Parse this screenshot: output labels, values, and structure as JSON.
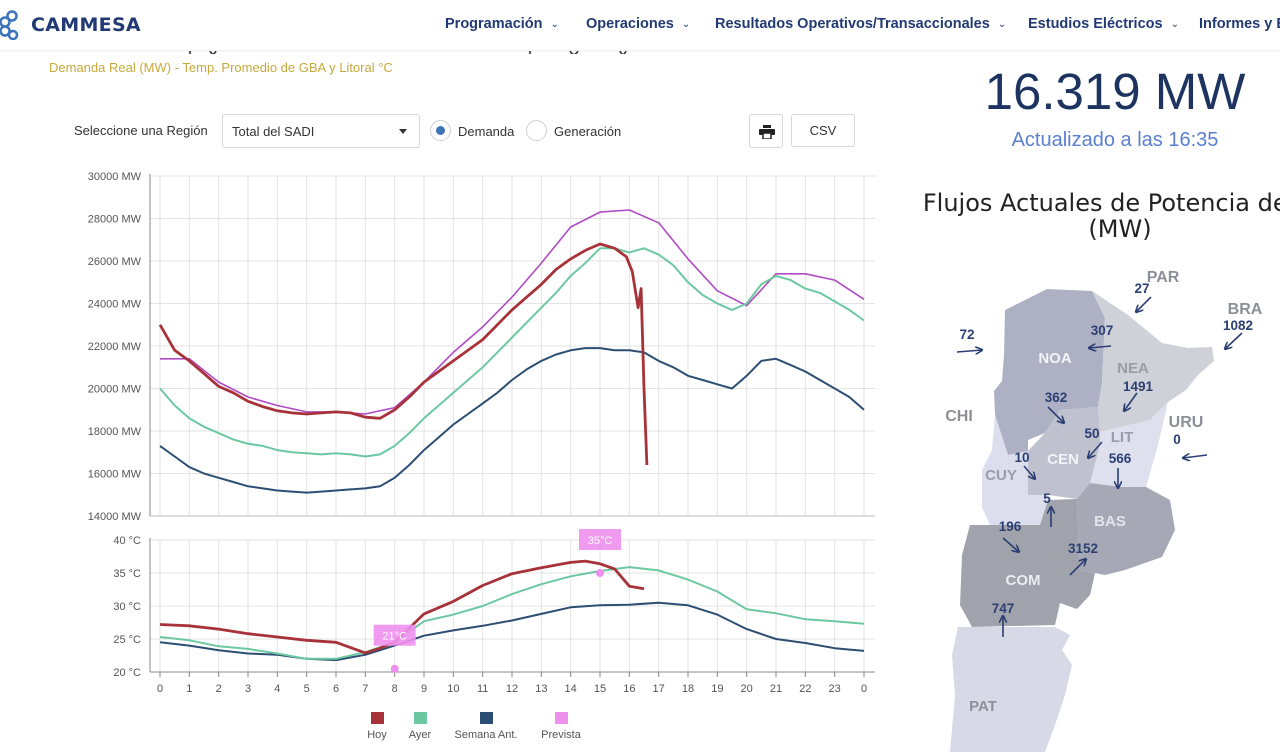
{
  "brand": {
    "name": "CAMMESA",
    "color": "#213a73"
  },
  "nav": [
    {
      "label": "Programación"
    },
    {
      "label": "Operaciones"
    },
    {
      "label": "Resultados Operativos/Transaccionales"
    },
    {
      "label": "Estudios Eléctricos"
    },
    {
      "label": "Informes y E"
    }
  ],
  "subtitle": "Demanda Real (MW) - Temp. Promedio de GBA y Litoral °C",
  "controls": {
    "region_label": "Seleccione una Región",
    "region_value": "Total del SADI",
    "radio_demanda": "Demanda",
    "radio_generacion": "Generación",
    "selected": "Demanda",
    "print_icon": "printer-icon",
    "csv_label": "CSV"
  },
  "chart_data": [
    {
      "type": "line",
      "x": [
        0,
        1,
        2,
        3,
        4,
        5,
        6,
        7,
        8,
        9,
        10,
        11,
        12,
        13,
        14,
        15,
        16,
        17,
        18,
        19,
        20,
        21,
        22,
        23,
        24
      ],
      "x_tick_labels": [
        "0",
        "1",
        "2",
        "3",
        "4",
        "5",
        "6",
        "7",
        "8",
        "9",
        "10",
        "11",
        "12",
        "13",
        "14",
        "15",
        "16",
        "17",
        "18",
        "19",
        "20",
        "21",
        "22",
        "23",
        "0"
      ],
      "y_tick_labels": [
        "14000 MW",
        "16000 MW",
        "18000 MW",
        "20000 MW",
        "22000 MW",
        "24000 MW",
        "26000 MW",
        "28000 MW",
        "30000 MW"
      ],
      "ylim": [
        14000,
        30000
      ],
      "grid": true,
      "series": [
        {
          "name": "Hoy",
          "color": "#a83239",
          "x": [
            0,
            0.5,
            1,
            1.5,
            2,
            2.5,
            3,
            3.5,
            4,
            4.5,
            5,
            5.5,
            6,
            6.5,
            7,
            7.5,
            8,
            8.5,
            9,
            9.5,
            10,
            10.5,
            11,
            11.5,
            12,
            12.5,
            13,
            13.5,
            14,
            14.5,
            15,
            15.5,
            15.9,
            16.1,
            16.3,
            16.4,
            16.5,
            16.6
          ],
          "values": [
            23000,
            21800,
            21300,
            20700,
            20100,
            19800,
            19400,
            19150,
            18950,
            18850,
            18800,
            18850,
            18900,
            18850,
            18650,
            18600,
            19000,
            19600,
            20300,
            20800,
            21300,
            21800,
            22300,
            23000,
            23700,
            24300,
            24900,
            25600,
            26100,
            26500,
            26800,
            26600,
            26200,
            25500,
            23800,
            24700,
            20000,
            16400
          ]
        },
        {
          "name": "Ayer",
          "color": "#6cc8a0",
          "x": [
            0,
            0.5,
            1,
            1.5,
            2,
            2.5,
            3,
            3.5,
            4,
            4.5,
            5,
            5.5,
            6,
            6.5,
            7,
            7.5,
            8,
            8.5,
            9,
            9.5,
            10,
            10.5,
            11,
            11.5,
            12,
            12.5,
            13,
            13.5,
            14,
            14.5,
            15,
            15.5,
            16,
            16.5,
            17,
            17.5,
            18,
            18.5,
            19,
            19.5,
            20,
            20.5,
            21,
            21.5,
            22,
            22.5,
            23,
            23.5,
            24
          ],
          "values": [
            20000,
            19200,
            18600,
            18200,
            17900,
            17600,
            17400,
            17300,
            17100,
            17000,
            16950,
            16900,
            16950,
            16900,
            16800,
            16900,
            17300,
            17900,
            18600,
            19200,
            19800,
            20400,
            21000,
            21700,
            22400,
            23100,
            23800,
            24500,
            25300,
            25900,
            26600,
            26600,
            26400,
            26600,
            26300,
            25800,
            25000,
            24400,
            24000,
            23700,
            24000,
            24900,
            25300,
            25100,
            24700,
            24500,
            24100,
            23700,
            23200
          ]
        },
        {
          "name": "Semana Ant.",
          "color": "#2d4e73",
          "x": [
            0,
            0.5,
            1,
            1.5,
            2,
            2.5,
            3,
            3.5,
            4,
            4.5,
            5,
            5.5,
            6,
            6.5,
            7,
            7.5,
            8,
            8.5,
            9,
            9.5,
            10,
            10.5,
            11,
            11.5,
            12,
            12.5,
            13,
            13.5,
            14,
            14.5,
            15,
            15.5,
            16,
            16.5,
            17,
            17.5,
            18,
            18.5,
            19,
            19.5,
            20,
            20.5,
            21,
            21.5,
            22,
            22.5,
            23,
            23.5,
            24
          ],
          "values": [
            17300,
            16800,
            16300,
            16000,
            15800,
            15600,
            15400,
            15300,
            15200,
            15150,
            15100,
            15150,
            15200,
            15250,
            15300,
            15400,
            15800,
            16400,
            17100,
            17700,
            18300,
            18800,
            19300,
            19800,
            20400,
            20900,
            21300,
            21600,
            21800,
            21900,
            21900,
            21800,
            21800,
            21700,
            21300,
            21000,
            20600,
            20400,
            20200,
            20000,
            20600,
            21300,
            21400,
            21100,
            20800,
            20400,
            20000,
            19600,
            19000
          ]
        },
        {
          "name": "",
          "color": "#b04bc4",
          "x": [
            0,
            1,
            2,
            3,
            4,
            5,
            6,
            7,
            8,
            9,
            10,
            11,
            12,
            13,
            14,
            15,
            16,
            17,
            18,
            19,
            20,
            21,
            22,
            23,
            24
          ],
          "values": [
            21400,
            21400,
            20300,
            19600,
            19200,
            18900,
            18900,
            18800,
            19100,
            20300,
            21700,
            22900,
            24300,
            25900,
            27600,
            28300,
            28400,
            27800,
            26100,
            24600,
            23900,
            25400,
            25400,
            25100,
            24200
          ]
        }
      ]
    },
    {
      "type": "line",
      "x": [
        0,
        1,
        2,
        3,
        4,
        5,
        6,
        7,
        8,
        9,
        10,
        11,
        12,
        13,
        14,
        15,
        16,
        17,
        18,
        19,
        20,
        21,
        22,
        23,
        24
      ],
      "y_tick_labels": [
        "20 °C",
        "25 °C",
        "30 °C",
        "35 °C",
        "40 °C"
      ],
      "ylim": [
        20,
        40
      ],
      "grid": true,
      "legend": [
        "Hoy",
        "Ayer",
        "Semana Ant.",
        "Prevista"
      ],
      "legend_colors": [
        "#a83239",
        "#6cc8a0",
        "#2d4e73",
        "#ee90ee"
      ],
      "annotations": [
        {
          "label": "21°C",
          "x": 8,
          "y": 20.5
        },
        {
          "label": "35°C",
          "x": 15,
          "y": 35
        }
      ],
      "series": [
        {
          "name": "Hoy",
          "color": "#a83239",
          "x": [
            0,
            1,
            2,
            3,
            4,
            5,
            6,
            7,
            7.5,
            8,
            9,
            10,
            11,
            12,
            13,
            14,
            14.5,
            15,
            15.5,
            16,
            16.5
          ],
          "values": [
            27.2,
            27.0,
            26.5,
            25.8,
            25.3,
            24.8,
            24.5,
            22.9,
            23.6,
            24.5,
            28.8,
            30.7,
            33.1,
            34.9,
            35.8,
            36.6,
            36.8,
            36.4,
            35.6,
            33.0,
            32.6
          ]
        },
        {
          "name": "Ayer",
          "color": "#6cc8a0",
          "x": [
            0,
            1,
            2,
            3,
            4,
            5,
            6,
            7,
            8,
            9,
            10,
            11,
            12,
            13,
            14,
            15,
            16,
            17,
            18,
            19,
            20,
            21,
            22,
            23,
            24
          ],
          "values": [
            25.3,
            24.8,
            23.9,
            23.5,
            22.8,
            22.0,
            22.0,
            23.0,
            24.5,
            27.7,
            28.7,
            30.0,
            31.8,
            33.3,
            34.5,
            35.3,
            35.9,
            35.4,
            34.0,
            32.2,
            29.5,
            28.9,
            28.0,
            27.7,
            27.3
          ]
        },
        {
          "name": "Semana Ant.",
          "color": "#2d4e73",
          "x": [
            0,
            1,
            2,
            3,
            4,
            5,
            6,
            7,
            8,
            9,
            10,
            11,
            12,
            13,
            14,
            15,
            16,
            17,
            18,
            19,
            20,
            21,
            22,
            23,
            24
          ],
          "values": [
            24.5,
            24.0,
            23.3,
            22.8,
            22.6,
            22.0,
            21.8,
            22.6,
            24.0,
            25.5,
            26.3,
            27.0,
            27.8,
            28.8,
            29.8,
            30.1,
            30.2,
            30.5,
            30.1,
            28.7,
            26.5,
            25.0,
            24.4,
            23.6,
            23.2
          ]
        }
      ]
    }
  ],
  "summary": {
    "value": "16.319 MW",
    "updated": "Actualizado a las 16:35"
  },
  "flows": {
    "title_line1": "Flujos Actuales de Potencia del S",
    "title_line2": "(MW)",
    "regions": [
      "NOA",
      "NEA",
      "CEN",
      "LIT",
      "CUY",
      "BAS",
      "COM",
      "PAT"
    ],
    "neighbors": [
      "PAR",
      "BRA",
      "CHI",
      "URU"
    ],
    "values": [
      {
        "id": "par",
        "label": "27"
      },
      {
        "id": "bra",
        "label": "1082"
      },
      {
        "id": "chi",
        "label": "72"
      },
      {
        "id": "noa-nea",
        "label": "307"
      },
      {
        "id": "nea-lit",
        "label": "1491"
      },
      {
        "id": "noa-cen",
        "label": "362"
      },
      {
        "id": "cen-lit",
        "label": "50"
      },
      {
        "id": "uru",
        "label": "0"
      },
      {
        "id": "cuy-cen",
        "label": "10"
      },
      {
        "id": "lit-bas",
        "label": "566"
      },
      {
        "id": "com-cen",
        "label": "5"
      },
      {
        "id": "cuy-com",
        "label": "196"
      },
      {
        "id": "com-bas",
        "label": "3152"
      },
      {
        "id": "pat-com",
        "label": "747"
      }
    ]
  }
}
